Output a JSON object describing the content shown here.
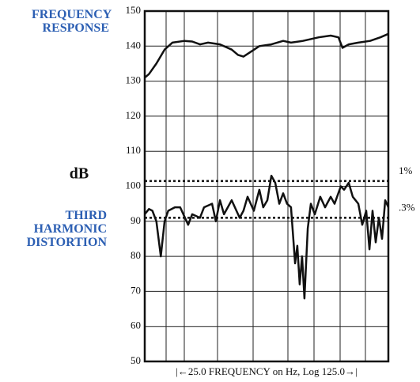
{
  "chart_data": {
    "type": "line",
    "ylabel": "dB",
    "xlabel": "|←25.0  FREQUENCY on Hz, Log 125.0→|",
    "xscale": "log",
    "xlim": [
      25,
      125
    ],
    "ylim": [
      50,
      150
    ],
    "yticks": [
      50,
      60,
      70,
      80,
      90,
      100,
      110,
      120,
      130,
      140,
      150
    ],
    "grid": true,
    "series": [
      {
        "name": "FREQUENCY RESPONSE",
        "color": "#111111",
        "x": [
          25.0,
          25.7,
          27.0,
          28.5,
          30.0,
          32.5,
          34.2,
          36.0,
          38.0,
          41.1,
          44.4,
          46.3,
          48.0,
          50.6,
          53.3,
          57.7,
          62.4,
          65.7,
          71.1,
          78.9,
          85.4,
          89.9,
          92.3,
          96.2,
          102.5,
          110.8,
          118.6,
          125.0
        ],
        "values": [
          131,
          132,
          135,
          139,
          141,
          141.5,
          141.3,
          140.5,
          141,
          140.5,
          139,
          137.5,
          137,
          138.5,
          140,
          140.5,
          141.5,
          141,
          141.5,
          142.5,
          143,
          142.5,
          139.5,
          140.5,
          141,
          141.5,
          142.5,
          143.5
        ]
      },
      {
        "name": "THIRD HARMONIC DISTORTION",
        "color": "#111111",
        "x": [
          25.0,
          25.7,
          26.3,
          27.0,
          27.8,
          28.5,
          29.2,
          30.5,
          31.6,
          33.3,
          34.2,
          36.0,
          37.0,
          39.0,
          40.0,
          41.1,
          42.2,
          44.4,
          46.8,
          48.0,
          49.3,
          51.4,
          53.3,
          54.7,
          56.2,
          57.7,
          59.2,
          60.8,
          62.4,
          64.0,
          65.7,
          67.5,
          68.5,
          69.6,
          70.7,
          71.8,
          73.4,
          74.9,
          76.9,
          79.7,
          82.3,
          85.4,
          87.6,
          91.3,
          93.3,
          96.2,
          98.8,
          102.5,
          105.2,
          108.0,
          110.3,
          112.6,
          115.0,
          117.4,
          119.9,
          122.4,
          125.0
        ],
        "values": [
          92,
          93.5,
          93,
          90,
          80,
          90,
          93,
          94,
          94,
          89,
          92,
          91,
          94,
          95,
          90,
          96,
          92,
          96,
          91,
          93,
          97,
          93,
          99,
          94,
          96,
          103,
          101,
          95,
          98,
          95,
          94,
          78,
          83,
          72,
          80,
          68,
          88,
          95,
          92,
          97,
          94,
          97,
          95,
          100,
          99,
          101,
          97,
          95,
          89,
          93,
          82,
          93,
          84,
          91,
          85,
          96,
          94
        ]
      }
    ],
    "reference_lines": [
      {
        "label": "1%",
        "value": 101.5
      },
      {
        "label": ".3%",
        "value": 91
      }
    ]
  }
}
